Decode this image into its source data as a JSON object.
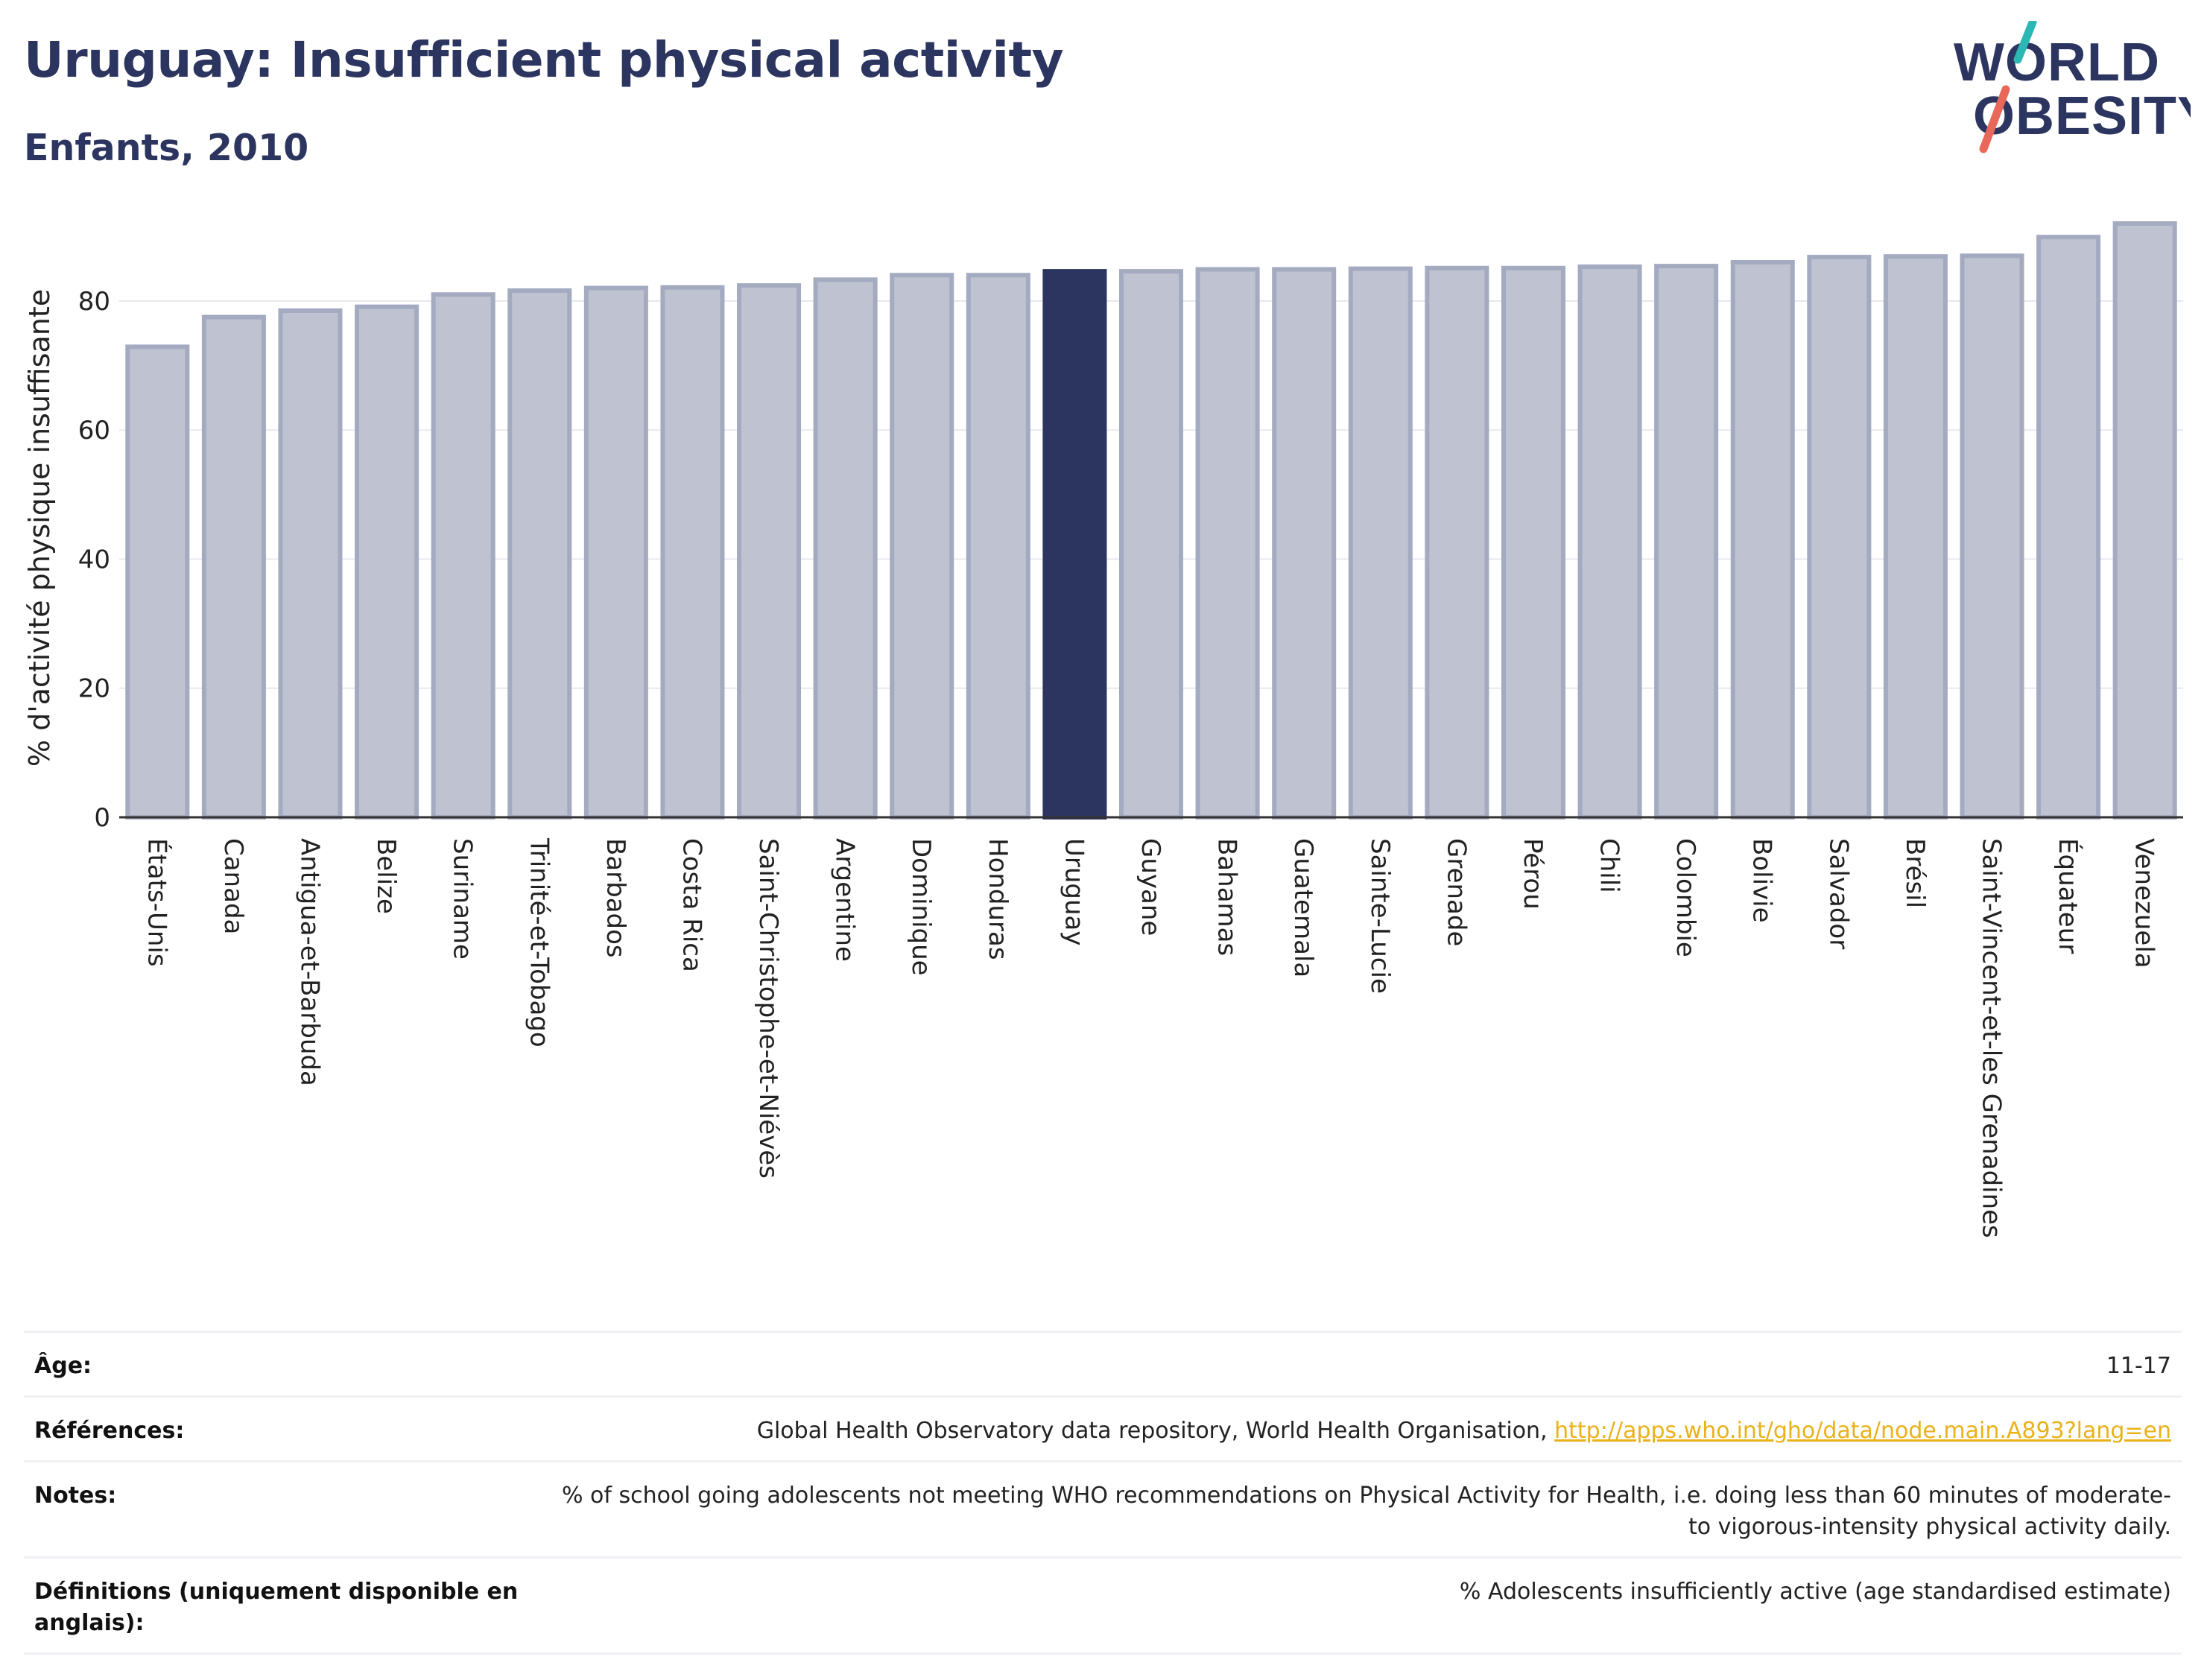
{
  "header": {
    "title": "Uruguay: Insufficient physical activity",
    "subtitle": "Enfants, 2010"
  },
  "logo": {
    "line1": "WORLD",
    "line2": "OBESITY",
    "accent_teal": "#2bb7b3",
    "accent_red": "#e8685a"
  },
  "chart_data": {
    "type": "bar",
    "ylabel": "% d'activité physique insuffisante",
    "ylim": [
      0,
      92
    ],
    "yticks": [
      0,
      20,
      40,
      60,
      80
    ],
    "grid": true,
    "highlight": "Uruguay",
    "colors": {
      "bar": "#bfc3d1",
      "bar_edge": "#a4aac0",
      "highlight": "#2b3560",
      "grid": "#e6e8ee",
      "axis": "#333333"
    },
    "categories": [
      "États-Unis",
      "Canada",
      "Antigua-et-Barbuda",
      "Belize",
      "Suriname",
      "Trinité-et-Tobago",
      "Barbados",
      "Costa Rica",
      "Saint-Christophe-et-Niévès",
      "Argentine",
      "Dominique",
      "Honduras",
      "Uruguay",
      "Guyane",
      "Bahamas",
      "Guatemala",
      "Sainte-Lucie",
      "Grenade",
      "Pérou",
      "Chili",
      "Colombie",
      "Bolivie",
      "Salvador",
      "Brésil",
      "Saint-Vincent-et-les Grenadines",
      "Équateur",
      "Venezuela"
    ],
    "values": [
      72.9,
      77.5,
      78.5,
      79.1,
      81.0,
      81.6,
      82.0,
      82.1,
      82.4,
      83.3,
      84.0,
      84.0,
      84.6,
      84.6,
      84.9,
      84.9,
      85.0,
      85.1,
      85.1,
      85.3,
      85.4,
      86.0,
      86.8,
      86.9,
      87.0,
      89.9,
      92.0
    ]
  },
  "info": {
    "age_label": "Âge:",
    "age_value": "11-17",
    "refs_label": "Références:",
    "refs_text": "Global Health Observatory data repository, World Health Organisation, ",
    "refs_link": "http://apps.who.int/gho/data/node.main.A893?lang=en",
    "notes_label": "Notes:",
    "notes_value": "% of school going adolescents not meeting WHO recommendations on Physical Activity for Health, i.e. doing less than 60 minutes of moderate- to vigorous-intensity physical activity daily.",
    "defs_label": "Définitions (uniquement disponible en anglais):",
    "defs_value": "% Adolescents insufficiently active (age standardised estimate)"
  }
}
